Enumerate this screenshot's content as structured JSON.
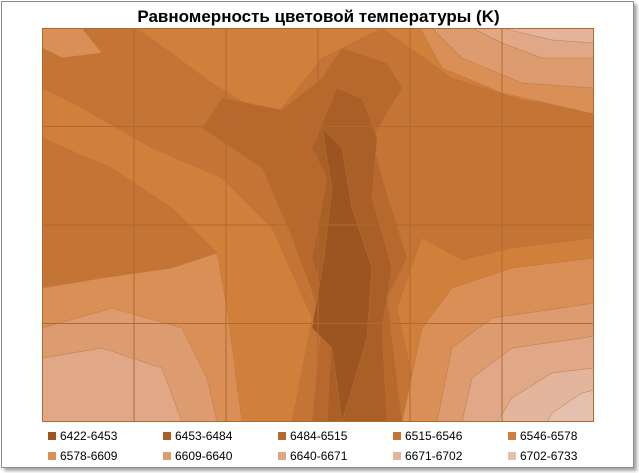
{
  "chart_data": {
    "type": "heatmap",
    "title": "Равномерность цветовой температуры (K)",
    "legend_position": "bottom",
    "grid": true,
    "grid_columns": 6,
    "grid_rows": 4,
    "bands": [
      {
        "label": "6422-6453",
        "color": "#9C5520"
      },
      {
        "label": "6453-6484",
        "color": "#AA5F27"
      },
      {
        "label": "6484-6515",
        "color": "#B7692D"
      },
      {
        "label": "6515-6546",
        "color": "#C47434"
      },
      {
        "label": "6546-6578",
        "color": "#D1803B"
      },
      {
        "label": "6578-6609",
        "color": "#D98F56"
      },
      {
        "label": "6609-6640",
        "color": "#DD9C70"
      },
      {
        "label": "6640-6671",
        "color": "#E0A887"
      },
      {
        "label": "6671-6702",
        "color": "#E3B59C"
      },
      {
        "label": "6702-6733",
        "color": "#E5C0AE"
      }
    ]
  }
}
